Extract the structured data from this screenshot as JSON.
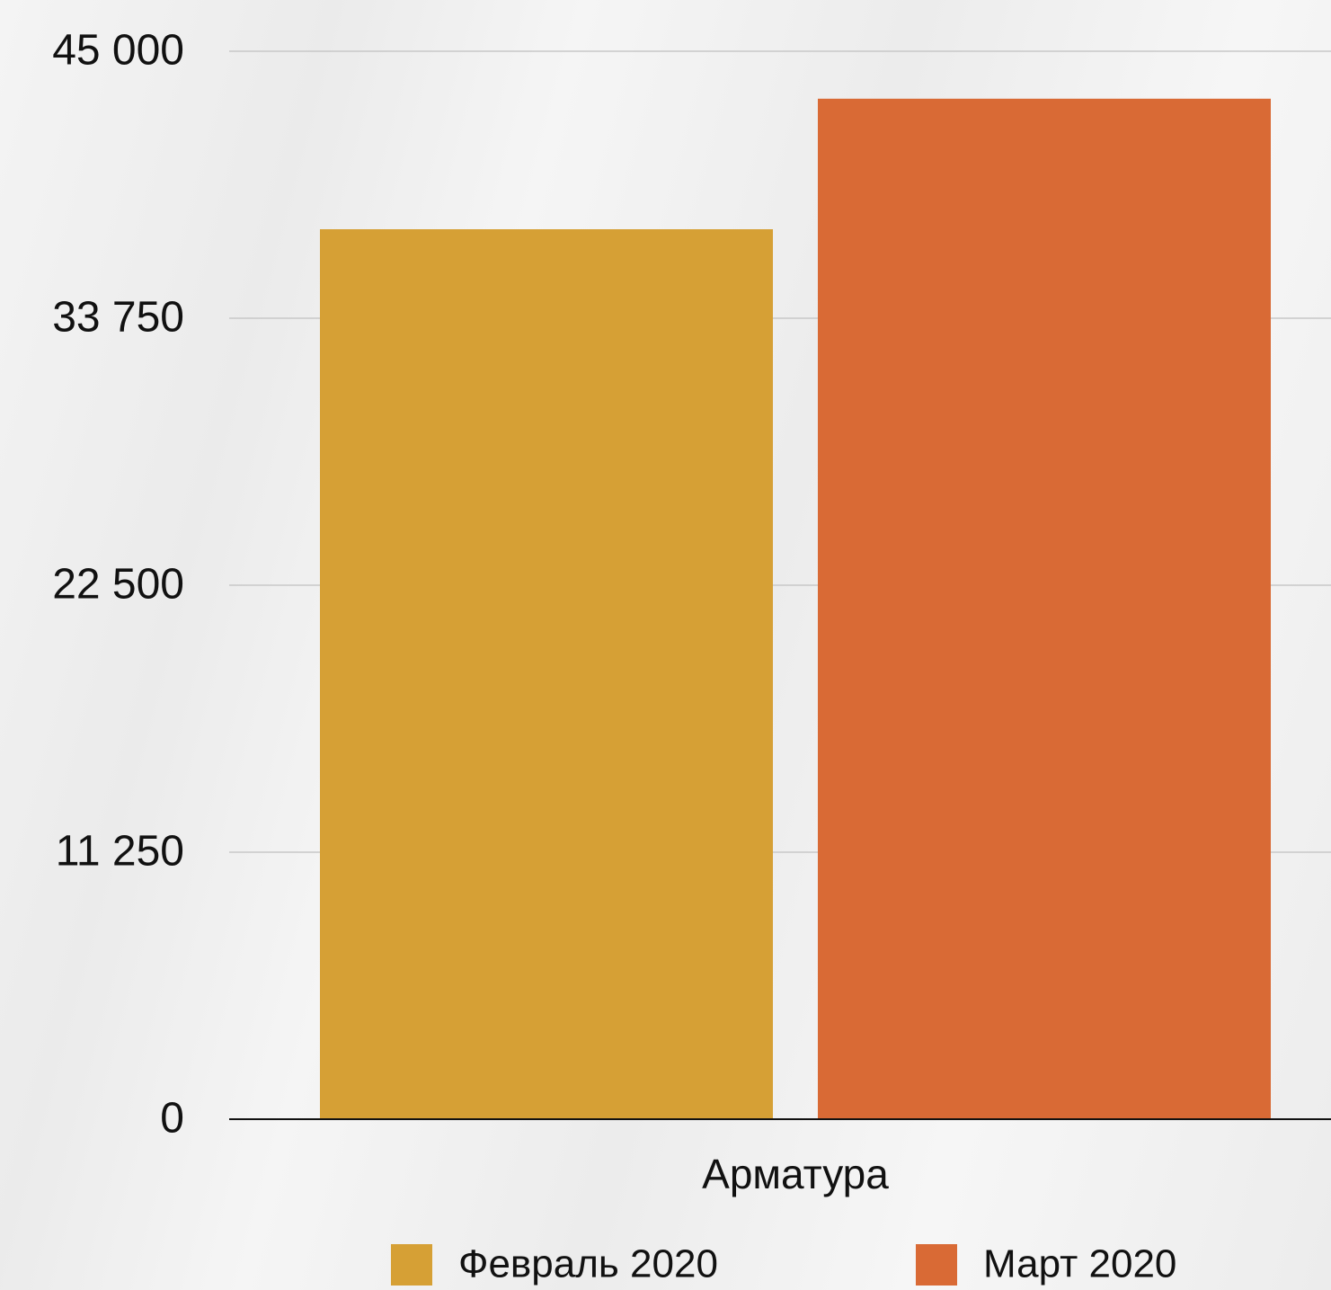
{
  "chart_data": {
    "type": "bar",
    "categories": [
      "Арматура"
    ],
    "series": [
      {
        "name": "Февраль 2020",
        "color": "#d6a035",
        "values": [
          37500
        ]
      },
      {
        "name": "Март 2020",
        "color": "#d96a35",
        "values": [
          43000
        ]
      }
    ],
    "ylim": [
      0,
      45000
    ],
    "yticks": [
      0,
      {
        "value": 11250,
        "label": "11 250"
      },
      {
        "value": 22500,
        "label": "22 500"
      },
      {
        "value": 33750,
        "label": "33 750"
      },
      {
        "value": 45000,
        "label": "45 000"
      }
    ],
    "grid": true,
    "legend": "bottom"
  }
}
